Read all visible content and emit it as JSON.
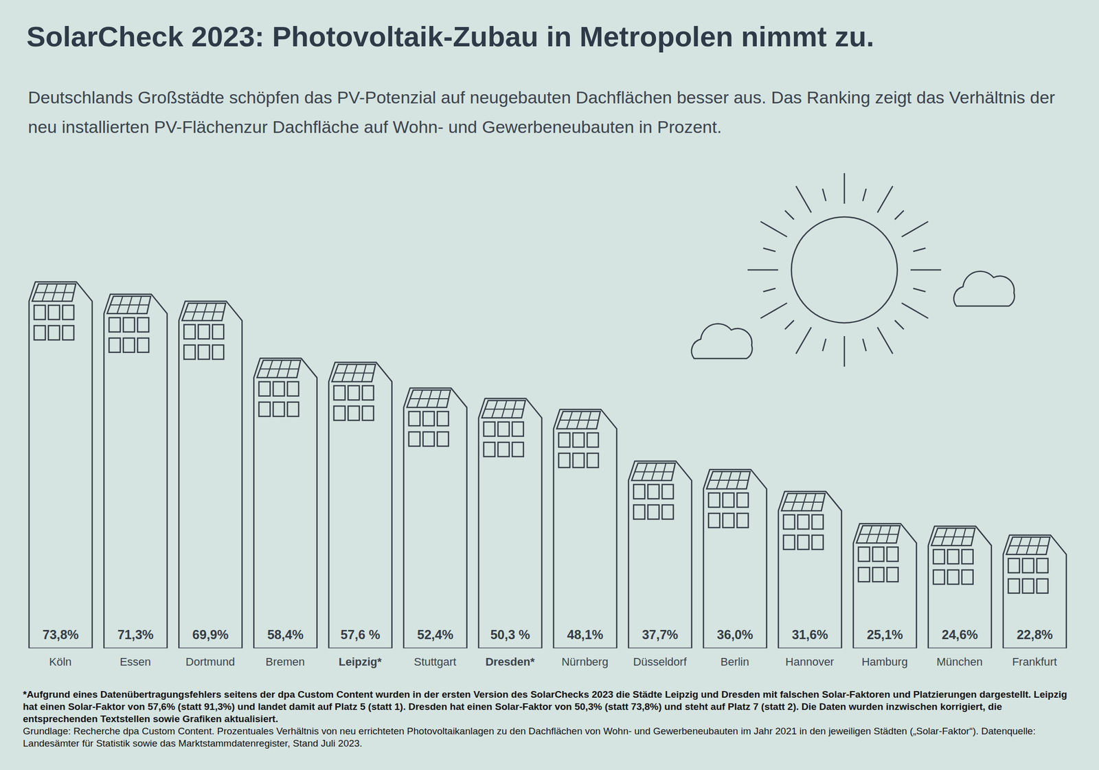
{
  "chart_data": {
    "type": "bar",
    "title": "SolarCheck 2023: Photovoltaik-Zubau in Metropolen nimmt zu.",
    "subtitle": "Deutschlands Großstädte schöpfen das PV-Potenzial auf neugebauten Dachflächen besser aus. Das Ranking zeigt das Verhältnis der neu installierten PV-Flächenzur Dachfläche auf Wohn- und Gewerbeneubauten in Prozent.",
    "categories": [
      "Köln",
      "Essen",
      "Dortmund",
      "Bremen",
      "Leipzig*",
      "Stuttgart",
      "Dresden*",
      "Nürnberg",
      "Düsseldorf",
      "Berlin",
      "Hannover",
      "Hamburg",
      "München",
      "Frankfurt"
    ],
    "values": [
      73.8,
      71.3,
      69.9,
      58.4,
      57.6,
      52.4,
      50.3,
      48.1,
      37.7,
      36.0,
      31.6,
      25.1,
      24.6,
      22.8
    ],
    "value_labels": [
      "73,8%",
      "71,3%",
      "69,9%",
      "58,4%",
      "57,6 %",
      "52,4%",
      "50,3 %",
      "48,1%",
      "37,7%",
      "36,0%",
      "31,6%",
      "25,1%",
      "24,6%",
      "22,8%"
    ],
    "color": "#333c45",
    "ylim": [
      0,
      80
    ],
    "data_labels": true,
    "tick_labels": "x",
    "footnote": "*Aufgrund eines Datenübertragungsfehlers seitens der dpa Custom Content wurden in der ersten Version des SolarChecks 2023 die Städte Leipzig und Dresden mit falschen Solar-Faktoren und Platzierungen dargestellt. Leipzig hat einen Solar-Faktor von 57,6% (statt 91,3%) und landet damit auf Platz 5 (statt 1). Dresden hat einen Solar-Faktor von 50,3% (statt 73,8%) und steht auf Platz 7 (statt 2). Die Daten wurden inzwischen korrigiert, die entsprechenden Textstellen sowie Grafiken aktualisiert.",
    "source": "Grundlage: Recherche dpa Custom Content. Prozentuales Verhältnis von neu errichteten Photovoltaikanlagen zu den Dachflächen von Wohn- und Gewerbeneubauten im Jahr 2021 in den jeweiligen Städten („Solar-Faktor“). Datenquelle: Landesämter für Statistik sowie das Marktstammdatenregister, Stand Juli 2023."
  }
}
